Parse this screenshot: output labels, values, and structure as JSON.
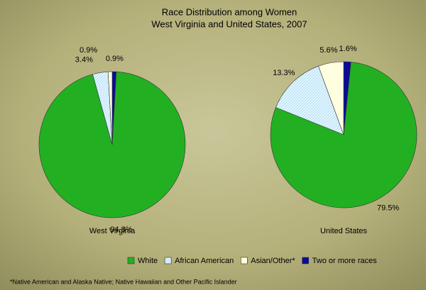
{
  "title": "Race Distribution among Women",
  "subtitle": "West Virginia and United States, 2007",
  "footnote": "*Native American and Alaska Native; Native Hawaiian and Other Pacific Islander",
  "chart_data": [
    {
      "type": "pie",
      "title": "West Virginia",
      "categories": [
        "White",
        "African American",
        "Asian/Other*",
        "Two or more races"
      ],
      "values": [
        94.8,
        3.4,
        0.9,
        0.9
      ],
      "value_labels": [
        "94.8%",
        "3.4%",
        "0.9%",
        "0.9%"
      ],
      "colors": [
        "#22b022",
        "#e4f6ff",
        "#ffffe0",
        "#0b0b9a"
      ]
    },
    {
      "type": "pie",
      "title": "United States",
      "categories": [
        "White",
        "African American",
        "Asian/Other*",
        "Two or more races"
      ],
      "values": [
        79.5,
        13.3,
        5.6,
        1.6
      ],
      "value_labels": [
        "79.5%",
        "13.3%",
        "5.6%",
        "1.6%"
      ],
      "colors": [
        "#22b022",
        "#e4f6ff",
        "#ffffe0",
        "#0b0b9a"
      ]
    }
  ]
}
